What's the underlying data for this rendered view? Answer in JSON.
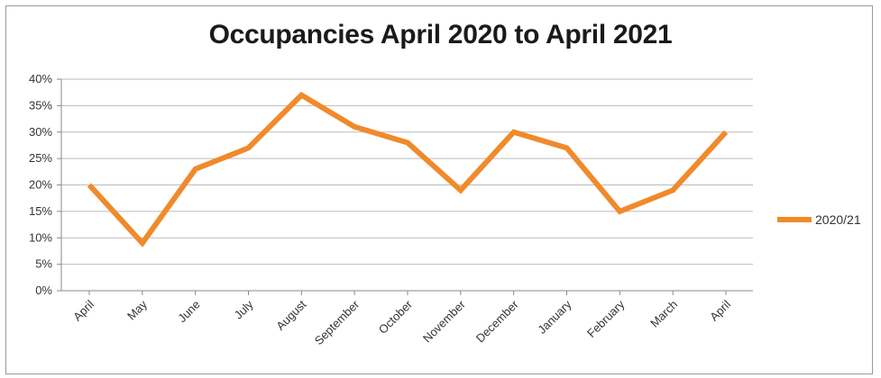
{
  "chart_data": {
    "type": "line",
    "title": "Occupancies April 2020 to April 2021",
    "categories": [
      "April",
      "May",
      "June",
      "July",
      "August",
      "September",
      "October",
      "November",
      "December",
      "January",
      "February",
      "March",
      "April"
    ],
    "series": [
      {
        "name": "2020/21",
        "values": [
          20,
          9,
          23,
          27,
          37,
          31,
          28,
          19,
          30,
          27,
          15,
          19,
          30
        ],
        "color": "#f08a2b"
      }
    ],
    "ylim": [
      0,
      40
    ],
    "yticks": [
      "0%",
      "5%",
      "10%",
      "15%",
      "20%",
      "25%",
      "30%",
      "35%",
      "40%"
    ],
    "grid": true,
    "legend": "right"
  }
}
